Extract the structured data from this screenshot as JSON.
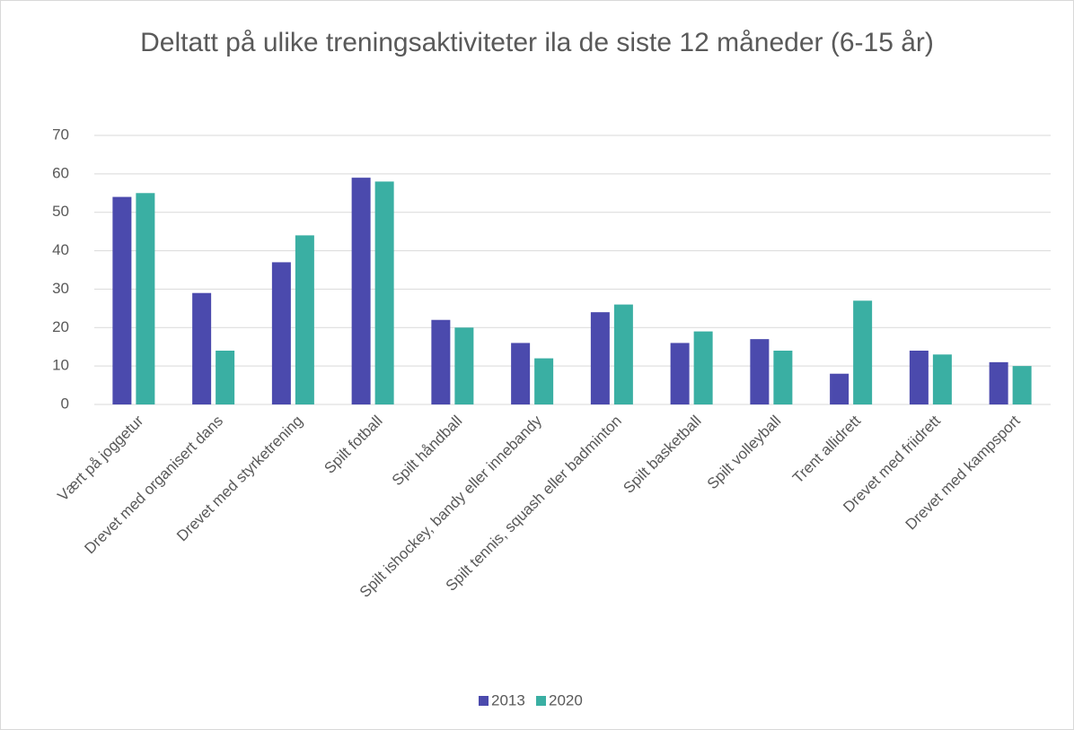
{
  "chart_data": {
    "type": "bar",
    "title": "Deltatt på ulike treningsaktiviteter ila de siste 12 måneder (6-15 år)",
    "categories": [
      "Vært på joggetur",
      "Drevet med organisert dans",
      "Drevet med styrketrening",
      "Spilt fotball",
      "Spilt håndball",
      "Spilt ishockey, bandy eller innebandy",
      "Spilt tennis, squash eller badminton",
      "Spilt basketball",
      "Spilt volleyball",
      "Trent allidrett",
      "Drevet med friidrett",
      "Drevet med kampsport"
    ],
    "series": [
      {
        "name": "2013",
        "color": "#4b4aad",
        "values": [
          54,
          29,
          37,
          59,
          22,
          16,
          24,
          16,
          17,
          8,
          14,
          11
        ]
      },
      {
        "name": "2020",
        "color": "#3aafa3",
        "values": [
          55,
          14,
          44,
          58,
          20,
          12,
          26,
          19,
          14,
          27,
          13,
          10
        ]
      }
    ],
    "ylim": [
      0,
      70
    ],
    "yticks": [
      0,
      10,
      20,
      30,
      40,
      50,
      60,
      70
    ],
    "grid": true,
    "legend": "bottom"
  }
}
